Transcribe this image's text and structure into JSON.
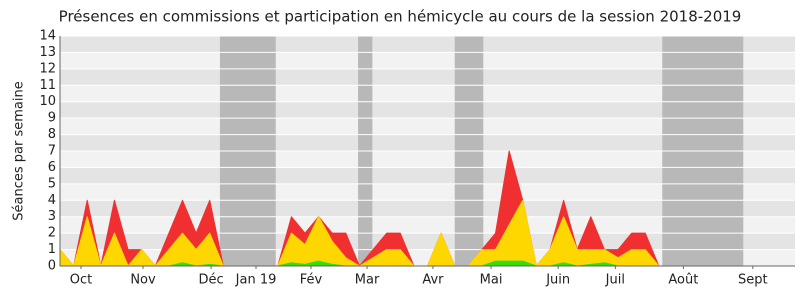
{
  "chart_data": {
    "type": "stacked_area",
    "title": "Présences en commissions et participation en hémicycle au cours de la session 2018-2019",
    "y_label": "Séances par semaine",
    "x": [
      0,
      1,
      2,
      3,
      4,
      5,
      6,
      7,
      8,
      9,
      10,
      11,
      12,
      13,
      14,
      15,
      16,
      17,
      18,
      19,
      20,
      21,
      22,
      23,
      24,
      25,
      26,
      27,
      28,
      29,
      30,
      31,
      32,
      33,
      34,
      35,
      36,
      37,
      38,
      39,
      40,
      41,
      42,
      43,
      44,
      45,
      46,
      47,
      48,
      49,
      50,
      51,
      52,
      53
    ],
    "xlim": [
      0,
      54
    ],
    "xticks": [
      {
        "value": 1.54,
        "label": "Oct"
      },
      {
        "value": 6.1,
        "label": "Nov"
      },
      {
        "value": 11.1,
        "label": "Déc"
      },
      {
        "value": 14.4,
        "label": "Jan 19"
      },
      {
        "value": 18.44,
        "label": "Fév"
      },
      {
        "value": 22.56,
        "label": "Mar"
      },
      {
        "value": 27.4,
        "label": "Avr"
      },
      {
        "value": 31.67,
        "label": "Mai"
      },
      {
        "value": 36.6,
        "label": "Juin"
      },
      {
        "value": 40.8,
        "label": "Juil"
      },
      {
        "value": 45.8,
        "label": "Août"
      },
      {
        "value": 50.9,
        "label": "Sept"
      }
    ],
    "ylim": [
      0,
      14
    ],
    "yticks": [
      0,
      1,
      2,
      3,
      4,
      5,
      6,
      7,
      8,
      9,
      10,
      11,
      12,
      13,
      14
    ],
    "grid": true,
    "shaded_periods": [
      [
        11.75,
        15.85
      ],
      [
        21.9,
        22.95
      ],
      [
        29,
        31.1
      ],
      [
        44.25,
        50.2
      ]
    ],
    "shade_color": "#b8b8b8",
    "series": [
      {
        "color": "#33dd00",
        "values": [
          0,
          0,
          0,
          0,
          0,
          0,
          0,
          0,
          0,
          0.2,
          0,
          0.1,
          0,
          0,
          0,
          0,
          0,
          0.2,
          0.1,
          0.3,
          0.1,
          0,
          0,
          0,
          0,
          0,
          0,
          0,
          0,
          0,
          0,
          0,
          0.3,
          0.3,
          0.3,
          0,
          0,
          0.2,
          0,
          0.1,
          0.2,
          0,
          0,
          0,
          0,
          0,
          0,
          0,
          0,
          0,
          0,
          0,
          0,
          0
        ]
      },
      {
        "color": "#ffd700",
        "values": [
          1,
          0,
          3,
          0,
          2,
          0,
          1,
          0,
          1,
          1.8,
          1,
          1.9,
          0,
          0,
          0,
          0,
          0,
          1.8,
          1.2,
          2.7,
          1.4,
          0.5,
          0,
          0.5,
          1,
          1,
          0,
          0,
          2,
          0,
          0,
          1,
          0.7,
          2.2,
          3.7,
          0,
          1,
          2.8,
          1,
          0.9,
          0.8,
          0.5,
          1,
          1,
          0,
          0,
          0,
          0,
          0,
          0,
          0,
          0,
          0,
          0
        ]
      },
      {
        "color": "#f03030",
        "values": [
          0,
          0,
          1,
          0,
          2,
          1,
          0,
          0,
          1,
          2,
          1,
          2,
          0,
          0,
          0,
          0,
          0,
          1,
          0.7,
          0,
          0.5,
          1.5,
          0,
          0.5,
          1,
          1,
          0,
          0,
          0,
          0,
          0,
          0,
          1,
          4.5,
          0,
          0,
          0,
          1,
          0,
          2,
          0,
          0.5,
          1,
          1,
          0,
          0,
          0,
          0,
          0,
          0,
          0,
          0,
          0,
          0
        ]
      }
    ]
  }
}
